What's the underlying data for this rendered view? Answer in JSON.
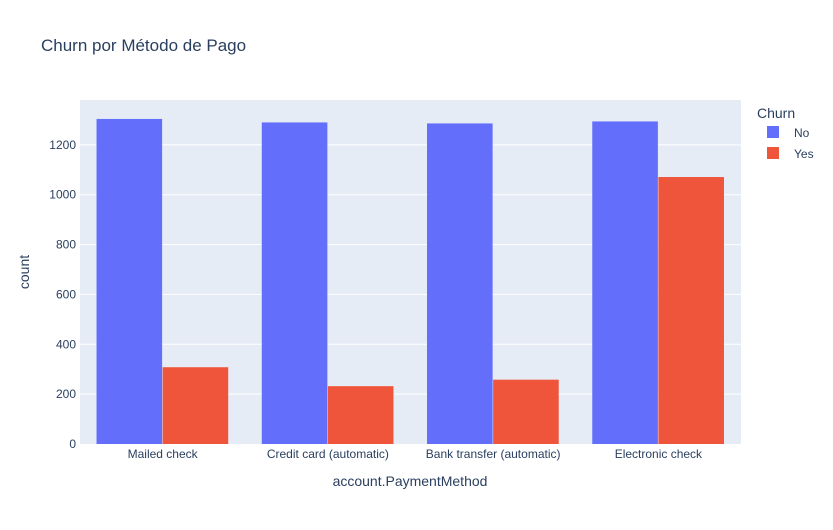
{
  "chart_data": {
    "type": "bar",
    "title": "Churn por Método de Pago",
    "xlabel": "account.PaymentMethod",
    "ylabel": "count",
    "categories": [
      "Mailed check",
      "Credit card (automatic)",
      "Bank transfer (automatic)",
      "Electronic check"
    ],
    "series": [
      {
        "name": "No",
        "values": [
          1304,
          1290,
          1286,
          1294
        ],
        "color": "#636efa"
      },
      {
        "name": "Yes",
        "values": [
          308,
          232,
          258,
          1071
        ],
        "color": "#ef553b"
      }
    ],
    "ylim": [
      0,
      1380
    ],
    "yticks": [
      0,
      200,
      400,
      600,
      800,
      1000,
      1200
    ],
    "legend": {
      "title": "Churn",
      "position": "top-right"
    },
    "grid": true,
    "colors": {
      "plot_bg": "#e5ecf6",
      "grid": "#ffffff",
      "text": "#2a3f5f"
    }
  }
}
